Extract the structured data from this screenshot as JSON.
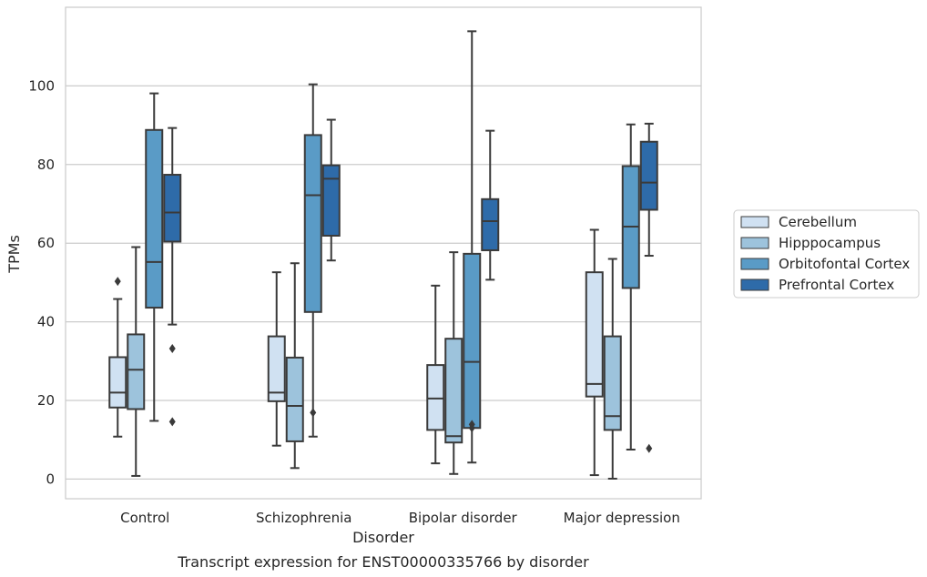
{
  "chart_data": {
    "type": "box",
    "caption": "Transcript expression for ENST00000335766 by disorder",
    "xlabel": "Disorder",
    "ylabel": "TPMs",
    "ylim": [
      -5,
      120
    ],
    "yticks": [
      0,
      20,
      40,
      60,
      80,
      100
    ],
    "grid": true,
    "legend_position": "right",
    "categories": [
      "Control",
      "Schizophrenia",
      "Bipolar disorder",
      "Major depression"
    ],
    "series": [
      {
        "name": "Cerebellum",
        "color": "#d0e1f2",
        "boxes": [
          {
            "whisker_low": 10.8,
            "q1": 18.2,
            "median": 22.0,
            "q3": 31.0,
            "whisker_high": 45.8,
            "outliers": [
              50.3
            ]
          },
          {
            "whisker_low": 8.5,
            "q1": 19.8,
            "median": 22.0,
            "q3": 36.3,
            "whisker_high": 52.6,
            "outliers": []
          },
          {
            "whisker_low": 4.0,
            "q1": 12.5,
            "median": 20.5,
            "q3": 29.0,
            "whisker_high": 49.2,
            "outliers": []
          },
          {
            "whisker_low": 1.0,
            "q1": 21.0,
            "median": 24.2,
            "q3": 52.6,
            "whisker_high": 63.4,
            "outliers": []
          }
        ]
      },
      {
        "name": "Hipppocampus",
        "color": "#9dc3dc",
        "boxes": [
          {
            "whisker_low": 0.8,
            "q1": 17.8,
            "median": 27.8,
            "q3": 36.8,
            "whisker_high": 59.0,
            "outliers": []
          },
          {
            "whisker_low": 2.8,
            "q1": 9.6,
            "median": 18.6,
            "q3": 30.9,
            "whisker_high": 54.9,
            "outliers": []
          },
          {
            "whisker_low": 1.3,
            "q1": 9.3,
            "median": 10.9,
            "q3": 35.7,
            "whisker_high": 57.7,
            "outliers": []
          },
          {
            "whisker_low": 0.1,
            "q1": 12.5,
            "median": 16.0,
            "q3": 36.3,
            "whisker_high": 56.0,
            "outliers": []
          }
        ]
      },
      {
        "name": "Orbitofontal Cortex",
        "color": "#5a9bc6",
        "boxes": [
          {
            "whisker_low": 14.8,
            "q1": 43.6,
            "median": 55.2,
            "q3": 88.8,
            "whisker_high": 98.1,
            "outliers": []
          },
          {
            "whisker_low": 10.8,
            "q1": 42.5,
            "median": 72.2,
            "q3": 87.5,
            "whisker_high": 100.4,
            "outliers": [
              16.9
            ]
          },
          {
            "whisker_low": 4.2,
            "q1": 13.0,
            "median": 29.8,
            "q3": 57.3,
            "whisker_high": 113.9,
            "outliers": [
              13.9,
              13.0
            ]
          },
          {
            "whisker_low": 7.5,
            "q1": 48.6,
            "median": 64.2,
            "q3": 79.6,
            "whisker_high": 90.2,
            "outliers": []
          }
        ]
      },
      {
        "name": "Prefrontal Cortex",
        "color": "#2e6ba9",
        "boxes": [
          {
            "whisker_low": 39.3,
            "q1": 60.4,
            "median": 67.8,
            "q3": 77.4,
            "whisker_high": 89.3,
            "outliers": [
              33.2,
              14.6
            ]
          },
          {
            "whisker_low": 55.6,
            "q1": 61.9,
            "median": 76.4,
            "q3": 79.8,
            "whisker_high": 91.4,
            "outliers": []
          },
          {
            "whisker_low": 50.7,
            "q1": 58.2,
            "median": 65.6,
            "q3": 71.2,
            "whisker_high": 88.6,
            "outliers": []
          },
          {
            "whisker_low": 56.8,
            "q1": 68.5,
            "median": 75.4,
            "q3": 85.8,
            "whisker_high": 90.4,
            "outliers": [
              7.8
            ]
          }
        ]
      }
    ]
  }
}
